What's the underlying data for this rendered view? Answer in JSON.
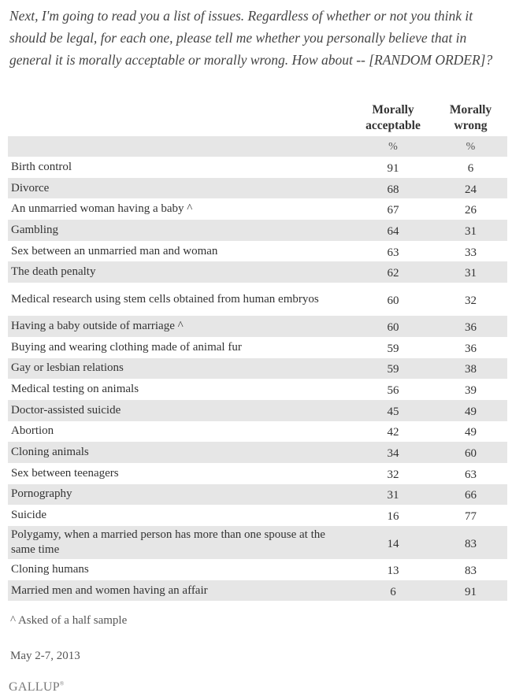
{
  "question": "Next, I'm going to read you a list of issues. Regardless of whether or not you think it should be legal, for each one, please tell me whether you personally believe that in general it is morally acceptable or morally wrong. How about -- [RANDOM ORDER]?",
  "columns": {
    "issue": "",
    "acceptable": "Morally acceptable",
    "wrong": "Morally wrong",
    "unit": "%"
  },
  "rows": [
    {
      "issue": "Birth control",
      "acceptable": "91",
      "wrong": "6"
    },
    {
      "issue": "Divorce",
      "acceptable": "68",
      "wrong": "24"
    },
    {
      "issue": "An unmarried woman having a baby ^",
      "acceptable": "67",
      "wrong": "26"
    },
    {
      "issue": "Gambling",
      "acceptable": "64",
      "wrong": "31"
    },
    {
      "issue": "Sex between an unmarried man and woman",
      "acceptable": "63",
      "wrong": "33"
    },
    {
      "issue": "The death penalty",
      "acceptable": "62",
      "wrong": "31"
    },
    {
      "issue": "Medical research using stem cells obtained from human embryos",
      "acceptable": "60",
      "wrong": "32"
    },
    {
      "issue": "Having a baby outside of marriage ^",
      "acceptable": "60",
      "wrong": "36"
    },
    {
      "issue": "Buying and wearing clothing made of animal fur",
      "acceptable": "59",
      "wrong": "36"
    },
    {
      "issue": "Gay or lesbian relations",
      "acceptable": "59",
      "wrong": "38"
    },
    {
      "issue": "Medical testing on animals",
      "acceptable": "56",
      "wrong": "39"
    },
    {
      "issue": "Doctor-assisted suicide",
      "acceptable": "45",
      "wrong": "49"
    },
    {
      "issue": "Abortion",
      "acceptable": "42",
      "wrong": "49"
    },
    {
      "issue": "Cloning animals",
      "acceptable": "34",
      "wrong": "60"
    },
    {
      "issue": "Sex between teenagers",
      "acceptable": "32",
      "wrong": "63"
    },
    {
      "issue": "Pornography",
      "acceptable": "31",
      "wrong": "66"
    },
    {
      "issue": "Suicide",
      "acceptable": "16",
      "wrong": "77"
    },
    {
      "issue": "Polygamy, when a married person has more than one spouse at the same time",
      "acceptable": "14",
      "wrong": "83"
    },
    {
      "issue": "Cloning humans",
      "acceptable": "13",
      "wrong": "83"
    },
    {
      "issue": "Married men and women having an affair",
      "acceptable": "6",
      "wrong": "91"
    }
  ],
  "footnote": "^ Asked of a half sample",
  "date": "May 2-7, 2013",
  "logo": "GALLUP",
  "logo_mark": "®",
  "colors": {
    "stripe": "#e6e6e6",
    "text": "#333333"
  }
}
